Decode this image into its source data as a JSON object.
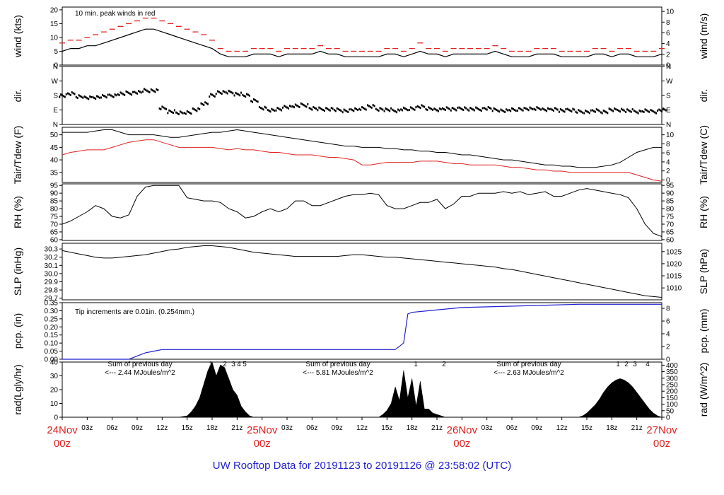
{
  "title": "UW Rooftop Data for 20191123  to  20191126 @ 23:58:02  (UTC)",
  "colors": {
    "data": "#000000",
    "accent": "#e02020",
    "precip": "#1f1fd0",
    "annotation": "#a030d0",
    "title": "#1f1fd0"
  },
  "chart_data": [
    {
      "type": "line",
      "name": "wind",
      "ylabel_left": "wind (kts)",
      "ylabel_right": "wind (m/s)",
      "ylim": [
        0,
        21
      ],
      "yticks_left": [
        0,
        5,
        10,
        15,
        20
      ],
      "yticks_right": [
        "0",
        "2",
        "4",
        "6",
        "8",
        "10"
      ],
      "annotation": "10 min. peak winds in red",
      "x": [
        0,
        1,
        2,
        3,
        4,
        5,
        6,
        7,
        8,
        9,
        10,
        11,
        12,
        13,
        14,
        15,
        16,
        17,
        18,
        19,
        20,
        21,
        22,
        23,
        24,
        25,
        26,
        27,
        28,
        29,
        30,
        31,
        32,
        33,
        34,
        35,
        36,
        37,
        38,
        39,
        40,
        41,
        42,
        43,
        44,
        45,
        46,
        47,
        48,
        49,
        50,
        51,
        52,
        53,
        54,
        55,
        56,
        57,
        58,
        59,
        60,
        61,
        62,
        63,
        64,
        65,
        66,
        67,
        68,
        69,
        70,
        71,
        72
      ],
      "series": [
        {
          "values": [
            5,
            6,
            6,
            7,
            7,
            8,
            9,
            10,
            11,
            12,
            13,
            13,
            12,
            11,
            10,
            9,
            8,
            7,
            6,
            4,
            3,
            3,
            3,
            4,
            4,
            4,
            3,
            4,
            4,
            4,
            4,
            5,
            4,
            4,
            3,
            3,
            3,
            3,
            3,
            4,
            4,
            3,
            4,
            5,
            4,
            4,
            3,
            4,
            4,
            4,
            4,
            4,
            5,
            4,
            3,
            3,
            3,
            4,
            4,
            4,
            3,
            3,
            3,
            3,
            4,
            4,
            3,
            4,
            4,
            3,
            3,
            3,
            4
          ]
        },
        {
          "values": [
            8,
            9,
            9,
            10,
            11,
            12,
            13,
            14,
            15,
            16,
            17,
            17,
            16,
            15,
            14,
            13,
            12,
            11,
            9,
            6,
            5,
            5,
            5,
            6,
            6,
            6,
            5,
            6,
            6,
            6,
            6,
            7,
            6,
            6,
            5,
            5,
            5,
            5,
            5,
            6,
            6,
            5,
            6,
            8,
            6,
            6,
            5,
            6,
            6,
            6,
            6,
            6,
            7,
            6,
            5,
            5,
            5,
            6,
            6,
            6,
            5,
            5,
            5,
            5,
            6,
            6,
            5,
            6,
            6,
            5,
            5,
            5,
            6
          ]
        }
      ]
    },
    {
      "type": "scatter",
      "name": "dir",
      "ylabel_left": "dir.",
      "ylabel_right": "dir.",
      "yticks": [
        "N",
        "E",
        "S",
        "W",
        "N"
      ],
      "x": [
        0,
        1,
        2,
        3,
        4,
        5,
        6,
        7,
        8,
        9,
        10,
        11,
        12,
        13,
        14,
        15,
        16,
        17,
        18,
        19,
        20,
        21,
        22,
        23,
        24,
        25,
        26,
        27,
        28,
        29,
        30,
        31,
        32,
        33,
        34,
        35,
        36,
        37,
        38,
        39,
        40,
        41,
        42,
        43,
        44,
        45,
        46,
        47,
        48,
        49,
        50,
        51,
        52,
        53,
        54,
        55,
        56,
        57,
        58,
        59,
        60,
        61,
        62,
        63,
        64,
        65,
        66,
        67,
        68,
        69,
        70,
        71,
        72
      ],
      "values": [
        180,
        190,
        175,
        165,
        170,
        175,
        180,
        190,
        195,
        200,
        210,
        210,
        100,
        80,
        70,
        75,
        90,
        130,
        180,
        200,
        200,
        190,
        180,
        150,
        100,
        90,
        95,
        110,
        115,
        120,
        100,
        95,
        95,
        90,
        85,
        90,
        100,
        110,
        95,
        90,
        85,
        95,
        100,
        110,
        100,
        90,
        100,
        95,
        100,
        95,
        95,
        100,
        90,
        85,
        90,
        95,
        95,
        100,
        90,
        95,
        85,
        90,
        80,
        80,
        85,
        80,
        90,
        90,
        85,
        80,
        85,
        80,
        90
      ]
    },
    {
      "type": "line",
      "name": "temp",
      "ylabel_left": "Tair/Tdew (F)",
      "ylabel_right": "Tair/Tdew (C)",
      "ylim": [
        31,
        53
      ],
      "yticks_left": [
        35,
        40,
        45,
        50
      ],
      "yticks_right": [
        "0",
        "2",
        "4",
        "6",
        "8",
        "10"
      ],
      "x": [
        0,
        1,
        2,
        3,
        4,
        5,
        6,
        7,
        8,
        9,
        10,
        11,
        12,
        13,
        14,
        15,
        16,
        17,
        18,
        19,
        20,
        21,
        22,
        23,
        24,
        25,
        26,
        27,
        28,
        29,
        30,
        31,
        32,
        33,
        34,
        35,
        36,
        37,
        38,
        39,
        40,
        41,
        42,
        43,
        44,
        45,
        46,
        47,
        48,
        49,
        50,
        51,
        52,
        53,
        54,
        55,
        56,
        57,
        58,
        59,
        60,
        61,
        62,
        63,
        64,
        65,
        66,
        67,
        68,
        69,
        70,
        71,
        72
      ],
      "series": [
        {
          "values": [
            51,
            51,
            51,
            51,
            51.5,
            52,
            52,
            51,
            50,
            50,
            50,
            50,
            49.5,
            49,
            49,
            49.5,
            50,
            50.5,
            51,
            51,
            51.5,
            52,
            51.5,
            51,
            50.5,
            50,
            49.5,
            49,
            48.5,
            48,
            47.5,
            47,
            46.5,
            46,
            45.5,
            45.5,
            45,
            45,
            45,
            44.5,
            44.5,
            44,
            44,
            43.5,
            43.5,
            43,
            43,
            42.5,
            42,
            42,
            41.5,
            41,
            40.5,
            40,
            40,
            39.5,
            39,
            38.5,
            38,
            38,
            37.5,
            37.5,
            37,
            37,
            37,
            37.5,
            38,
            39,
            41,
            43,
            44,
            45,
            45
          ]
        },
        {
          "values": [
            42,
            43,
            43.5,
            44,
            44,
            44,
            45,
            46,
            47,
            47.5,
            48,
            48,
            47,
            46,
            45,
            45,
            45,
            45,
            45,
            44.5,
            44,
            44.5,
            44,
            44,
            43.5,
            43,
            43,
            42.5,
            42,
            42,
            42,
            41.5,
            41,
            41,
            40.5,
            40,
            38,
            38,
            38.5,
            39,
            39,
            39,
            39,
            39.5,
            39.5,
            39.5,
            39,
            38.5,
            38.5,
            38,
            38,
            38,
            38,
            37.5,
            37,
            37,
            36.5,
            36,
            36,
            35.5,
            35.5,
            35,
            35,
            35,
            35,
            35,
            35,
            35,
            35,
            34,
            33,
            32,
            31.5
          ]
        }
      ]
    },
    {
      "type": "line",
      "name": "rh",
      "ylabel_left": "RH (%)",
      "ylabel_right": "RH (%)",
      "ylim": [
        59.5,
        96
      ],
      "yticks": [
        60,
        65,
        70,
        75,
        80,
        85,
        90,
        95
      ],
      "x": [
        0,
        1,
        2,
        3,
        4,
        5,
        6,
        7,
        8,
        9,
        10,
        11,
        12,
        13,
        14,
        15,
        16,
        17,
        18,
        19,
        20,
        21,
        22,
        23,
        24,
        25,
        26,
        27,
        28,
        29,
        30,
        31,
        32,
        33,
        34,
        35,
        36,
        37,
        38,
        39,
        40,
        41,
        42,
        43,
        44,
        45,
        46,
        47,
        48,
        49,
        50,
        51,
        52,
        53,
        54,
        55,
        56,
        57,
        58,
        59,
        60,
        61,
        62,
        63,
        64,
        65,
        66,
        67,
        68,
        69,
        70,
        71,
        72
      ],
      "series": [
        {
          "values": [
            70,
            72,
            75,
            78,
            82,
            80,
            75,
            74,
            76,
            88,
            94,
            95,
            95,
            95,
            95,
            87,
            86,
            85,
            85,
            84,
            80,
            78,
            74,
            75,
            78,
            80,
            78,
            80,
            85,
            85,
            82,
            82,
            84,
            86,
            88,
            89,
            89,
            90,
            89,
            82,
            80,
            80,
            82,
            84,
            84,
            86,
            80,
            83,
            88,
            88,
            90,
            90,
            90,
            91,
            90,
            91,
            89,
            90,
            91,
            88,
            88,
            90,
            92,
            93,
            92,
            91,
            90,
            89,
            87,
            80,
            70,
            64,
            62
          ]
        }
      ]
    },
    {
      "type": "line",
      "name": "slp",
      "ylabel_left": "SLP (inHg)",
      "ylabel_right": "SLP (hPa)",
      "ylim": [
        29.68,
        30.37
      ],
      "yticks_left": [
        "29.7",
        "29.8",
        "29.9",
        "30.0",
        "30.1",
        "30.2",
        "30.3"
      ],
      "yticks_right": [
        "1010",
        "1015",
        "1020",
        "1025"
      ],
      "x": [
        0,
        1,
        2,
        3,
        4,
        5,
        6,
        7,
        8,
        9,
        10,
        11,
        12,
        13,
        14,
        15,
        16,
        17,
        18,
        19,
        20,
        21,
        22,
        23,
        24,
        25,
        26,
        27,
        28,
        29,
        30,
        31,
        32,
        33,
        34,
        35,
        36,
        37,
        38,
        39,
        40,
        41,
        42,
        43,
        44,
        45,
        46,
        47,
        48,
        49,
        50,
        51,
        52,
        53,
        54,
        55,
        56,
        57,
        58,
        59,
        60,
        61,
        62,
        63,
        64,
        65,
        66,
        67,
        68,
        69,
        70,
        71,
        72
      ],
      "series": [
        {
          "values": [
            30.28,
            30.26,
            30.24,
            30.22,
            30.2,
            30.19,
            30.19,
            30.2,
            30.21,
            30.22,
            30.23,
            30.25,
            30.27,
            30.29,
            30.3,
            30.32,
            30.33,
            30.34,
            30.34,
            30.33,
            30.32,
            30.3,
            30.28,
            30.26,
            30.25,
            30.24,
            30.23,
            30.22,
            30.21,
            30.21,
            30.21,
            30.21,
            30.21,
            30.21,
            30.22,
            30.23,
            30.23,
            30.22,
            30.21,
            30.2,
            30.2,
            30.19,
            30.18,
            30.17,
            30.16,
            30.15,
            30.14,
            30.13,
            30.12,
            30.11,
            30.1,
            30.09,
            30.08,
            30.06,
            30.05,
            30.03,
            30.01,
            29.99,
            29.97,
            29.95,
            29.93,
            29.91,
            29.89,
            29.87,
            29.85,
            29.83,
            29.81,
            29.79,
            29.77,
            29.75,
            29.73,
            29.72,
            29.71
          ]
        }
      ]
    },
    {
      "type": "line",
      "name": "pcp",
      "ylabel_left": "pcp. (in)",
      "ylabel_right": "pcp. (mm)",
      "ylim": [
        0,
        0.35
      ],
      "yticks_left": [
        "0.00",
        "0.05",
        "0.10",
        "0.15",
        "0.20",
        "0.25",
        "0.30",
        "0.35"
      ],
      "yticks_right": [
        "0",
        "2",
        "4",
        "6",
        "8"
      ],
      "annotation": "Tip increments are 0.01in. (0.254mm.)",
      "x": [
        0,
        8,
        9,
        10,
        11,
        12,
        40,
        41,
        41.5,
        42,
        44,
        46,
        48,
        55,
        62,
        72
      ],
      "series": [
        {
          "values": [
            0,
            0,
            0.02,
            0.04,
            0.05,
            0.06,
            0.06,
            0.1,
            0.28,
            0.29,
            0.3,
            0.31,
            0.32,
            0.33,
            0.34,
            0.34
          ]
        }
      ]
    },
    {
      "type": "area",
      "name": "rad",
      "ylabel_left": "rad(Lgly/hr)",
      "ylabel_right": "rad (W/m^2)",
      "ylim": [
        0,
        40
      ],
      "yticks_left": [
        0,
        10,
        20,
        30,
        40
      ],
      "yticks_right": [
        "0",
        "50",
        "100",
        "150",
        "200",
        "250",
        "300",
        "350",
        "400"
      ],
      "annotations": [
        {
          "text": "Sum of previous day",
          "sub": "<--- 2.44 MJoules/m^2"
        },
        {
          "text": "Sum of previous day",
          "sub": "<--- 5.81 MJoules/m^2"
        },
        {
          "text": "Sum of previous day",
          "sub": "<--- 2.63 MJoules/m^2"
        }
      ],
      "markers": [
        "1",
        "2",
        "3",
        "4",
        "5",
        "1",
        "2",
        "1",
        "2",
        "3",
        "4"
      ],
      "x": [
        0,
        14,
        15,
        15.5,
        16,
        16.5,
        17,
        17.5,
        18,
        18.5,
        19,
        19.5,
        20,
        20.5,
        21,
        21.5,
        22,
        22.5,
        23,
        38,
        38.5,
        39,
        39.5,
        40,
        40.5,
        41,
        41.5,
        42,
        42.5,
        43,
        43.5,
        44,
        44.5,
        45,
        45.5,
        46,
        46.5,
        47,
        62,
        62.5,
        63,
        63.5,
        64,
        64.5,
        65,
        65.5,
        66,
        66.5,
        67,
        67.5,
        68,
        68.5,
        69,
        69.5,
        70,
        70.5,
        71,
        71.5,
        72
      ],
      "series": [
        {
          "values": [
            0,
            0,
            1,
            4,
            8,
            14,
            24,
            34,
            40,
            30,
            38,
            36,
            28,
            20,
            16,
            8,
            4,
            1,
            0,
            0,
            2,
            5,
            10,
            22,
            12,
            34,
            14,
            28,
            8,
            26,
            6,
            6,
            3,
            2,
            1,
            0,
            0,
            0,
            0,
            1,
            3,
            6,
            9,
            13,
            18,
            22,
            25,
            27,
            28,
            27,
            25,
            22,
            18,
            14,
            10,
            6,
            3,
            1,
            0
          ]
        }
      ]
    },
    {
      "type": "axis",
      "name": "time",
      "day_labels": [
        {
          "day": "24Nov",
          "hour": "00z"
        },
        {
          "day": "25Nov",
          "hour": "00z"
        },
        {
          "day": "26Nov",
          "hour": "00z"
        },
        {
          "day": "27Nov",
          "hour": "00z"
        }
      ],
      "hour_ticks": [
        "03z",
        "06z",
        "09z",
        "12z",
        "15z",
        "18z",
        "21z"
      ]
    }
  ]
}
